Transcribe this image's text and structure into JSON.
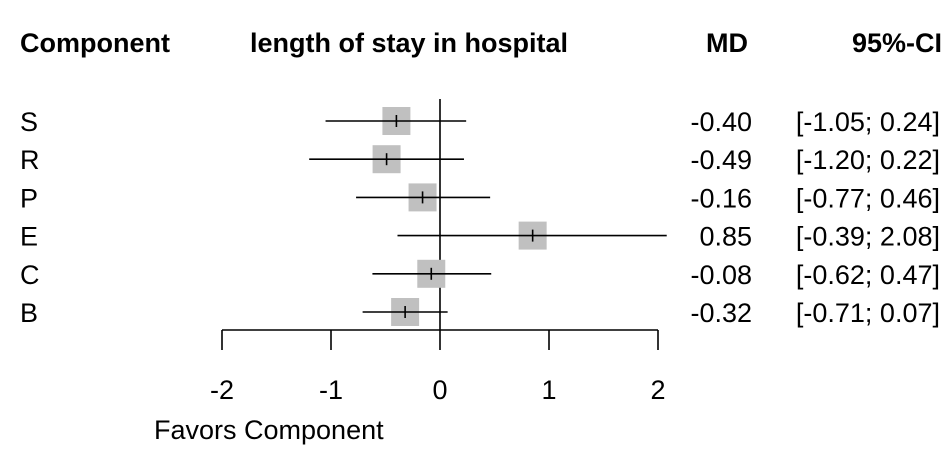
{
  "headers": {
    "component": "Component",
    "title": "length of stay in hospital",
    "md": "MD",
    "ci": "95%-CI"
  },
  "chart_data": {
    "type": "forest",
    "title": "length of stay in hospital",
    "xlabel": "Favors Component",
    "xlim": [
      -2,
      2
    ],
    "xticks": [
      "-2",
      "-1",
      "0",
      "1",
      "2"
    ],
    "reference_line": 0,
    "rows": [
      {
        "label": "S",
        "md": -0.4,
        "lower": -1.05,
        "upper": 0.24,
        "md_text": "-0.40",
        "ci_text": "[-1.05; 0.24]"
      },
      {
        "label": "R",
        "md": -0.49,
        "lower": -1.2,
        "upper": 0.22,
        "md_text": "-0.49",
        "ci_text": "[-1.20; 0.22]"
      },
      {
        "label": "P",
        "md": -0.16,
        "lower": -0.77,
        "upper": 0.46,
        "md_text": "-0.16",
        "ci_text": "[-0.77; 0.46]"
      },
      {
        "label": "E",
        "md": 0.85,
        "lower": -0.39,
        "upper": 2.08,
        "md_text": "0.85",
        "ci_text": "[-0.39; 2.08]"
      },
      {
        "label": "C",
        "md": -0.08,
        "lower": -0.62,
        "upper": 0.47,
        "md_text": "-0.08",
        "ci_text": "[-0.62; 0.47]"
      },
      {
        "label": "B",
        "md": -0.32,
        "lower": -0.71,
        "upper": 0.07,
        "md_text": "-0.32",
        "ci_text": "[-0.71; 0.07]"
      }
    ],
    "colors": {
      "box": "#c0c0c0",
      "line": "#000000"
    }
  }
}
